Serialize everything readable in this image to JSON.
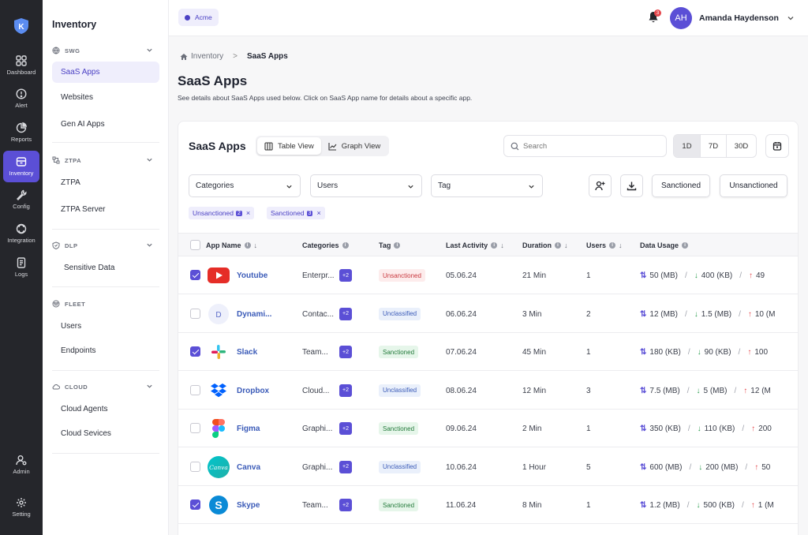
{
  "rail": {
    "items": [
      {
        "label": "Dashboard",
        "icon": "grid-icon"
      },
      {
        "label": "Alert",
        "icon": "alert-icon"
      },
      {
        "label": "Reports",
        "icon": "pie-chart-icon"
      },
      {
        "label": "Inventory",
        "icon": "inventory-icon",
        "active": true
      },
      {
        "label": "Config",
        "icon": "wrench-icon"
      },
      {
        "label": "Integration",
        "icon": "integration-icon"
      },
      {
        "label": "Logs",
        "icon": "logs-icon"
      }
    ],
    "admin_label": "Admin",
    "setting_label": "Setting"
  },
  "sidebar": {
    "title": "Inventory",
    "sections": [
      {
        "label": "SWG",
        "items": [
          "SaaS Apps",
          "Websites",
          "Gen AI Apps"
        ]
      },
      {
        "label": "ZTPA",
        "items": [
          "ZTPA",
          "ZTPA Server"
        ]
      },
      {
        "label": "DLP",
        "items": [
          "Sensitive Data"
        ]
      },
      {
        "label": "FLEET",
        "items": [
          "Users",
          "Endpoints"
        ]
      },
      {
        "label": "CLOUD",
        "items": [
          "Cloud Agents",
          "Cloud Sevices"
        ]
      }
    ]
  },
  "topbar": {
    "tenant": "Acme",
    "notification_count": "3",
    "avatar_initials": "AH",
    "user_name": "Amanda Haydenson"
  },
  "breadcrumb": {
    "root": "Inventory",
    "current": "SaaS Apps"
  },
  "page": {
    "title": "SaaS Apps",
    "subtitle": "See details about SaaS Apps used below. Click on SaaS App name for details about a specific app."
  },
  "card": {
    "title": "SaaS Apps",
    "views": [
      "Table View",
      "Graph View"
    ],
    "search_placeholder": "Search",
    "periods": [
      "1D",
      "7D",
      "30D"
    ],
    "filters": [
      "Categories",
      "Users",
      "Tag"
    ],
    "sanctioned_label": "Sanctioned",
    "unsanctioned_label": "Unsanctioned",
    "chips": [
      {
        "label": "Unsanctioned",
        "count": "2"
      },
      {
        "label": "Sanctioned",
        "count": "3"
      }
    ]
  },
  "table": {
    "headers": [
      "App Name",
      "Categories",
      "Tag",
      "Last Activity",
      "Duration",
      "Users",
      "Data Usage"
    ],
    "rows": [
      {
        "checked": true,
        "name": "Youtube",
        "icon": "youtube-icon",
        "category": "Enterpr...",
        "plus": "+2",
        "tag": "Unsanctioned",
        "last": "05.06.24",
        "duration": "21 Min",
        "users": "1",
        "total": "50 (MB)",
        "down": "400 (KB)",
        "up": "49"
      },
      {
        "checked": false,
        "name": "Dynami...",
        "icon": "dynamics-icon",
        "category": "Contac...",
        "plus": "+2",
        "tag": "Unclassified",
        "last": "06.06.24",
        "duration": "3 Min",
        "users": "2",
        "total": "12 (MB)",
        "down": "1.5 (MB)",
        "up": "10 (M"
      },
      {
        "checked": true,
        "name": "Slack",
        "icon": "slack-icon",
        "category": "Team...",
        "plus": "+2",
        "tag": "Sanctioned",
        "last": "07.06.24",
        "duration": "45 Min",
        "users": "1",
        "total": "180 (KB)",
        "down": "90 (KB)",
        "up": "100"
      },
      {
        "checked": false,
        "name": "Dropbox",
        "icon": "dropbox-icon",
        "category": "Cloud...",
        "plus": "+2",
        "tag": "Unclassified",
        "last": "08.06.24",
        "duration": "12 Min",
        "users": "3",
        "total": "7.5 (MB)",
        "down": "5 (MB)",
        "up": "12 (M"
      },
      {
        "checked": false,
        "name": "Figma",
        "icon": "figma-icon",
        "category": "Graphi...",
        "plus": "+2",
        "tag": "Sanctioned",
        "last": "09.06.24",
        "duration": "2 Min",
        "users": "1",
        "total": "350 (KB)",
        "down": "110 (KB)",
        "up": "200"
      },
      {
        "checked": false,
        "name": "Canva",
        "icon": "canva-icon",
        "category": "Graphi...",
        "plus": "+2",
        "tag": "Unclassified",
        "last": "10.06.24",
        "duration": "1 Hour",
        "users": "5",
        "total": "600 (MB)",
        "down": "200 (MB)",
        "up": "50"
      },
      {
        "checked": true,
        "name": "Skype",
        "icon": "skype-icon",
        "category": "Team...",
        "plus": "+2",
        "tag": "Sanctioned",
        "last": "11.06.24",
        "duration": "8 Min",
        "users": "1",
        "total": "1.2 (MB)",
        "down": "500 (KB)",
        "up": "1 (M"
      }
    ]
  }
}
